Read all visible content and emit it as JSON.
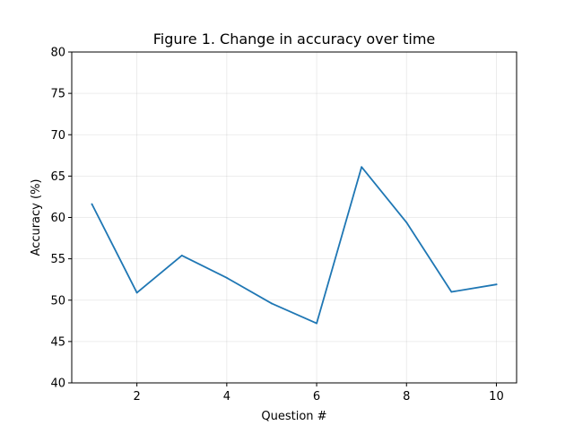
{
  "chart_data": {
    "type": "line",
    "title": "Figure 1. Change in accuracy over time",
    "xlabel": "Question #",
    "ylabel": "Accuracy (%)",
    "xlim": [
      0.55,
      10.45
    ],
    "ylim": [
      40,
      80
    ],
    "xticks": [
      2,
      4,
      6,
      8,
      10
    ],
    "yticks": [
      40,
      45,
      50,
      55,
      60,
      65,
      70,
      75,
      80
    ],
    "grid": true,
    "x": [
      1,
      2,
      3,
      4,
      5,
      6,
      7,
      8,
      9,
      10
    ],
    "series": [
      {
        "values": [
          61.6,
          50.9,
          55.4,
          52.7,
          49.6,
          47.2,
          66.1,
          59.4,
          51.0,
          51.9
        ],
        "color": "#1f77b4"
      }
    ]
  }
}
